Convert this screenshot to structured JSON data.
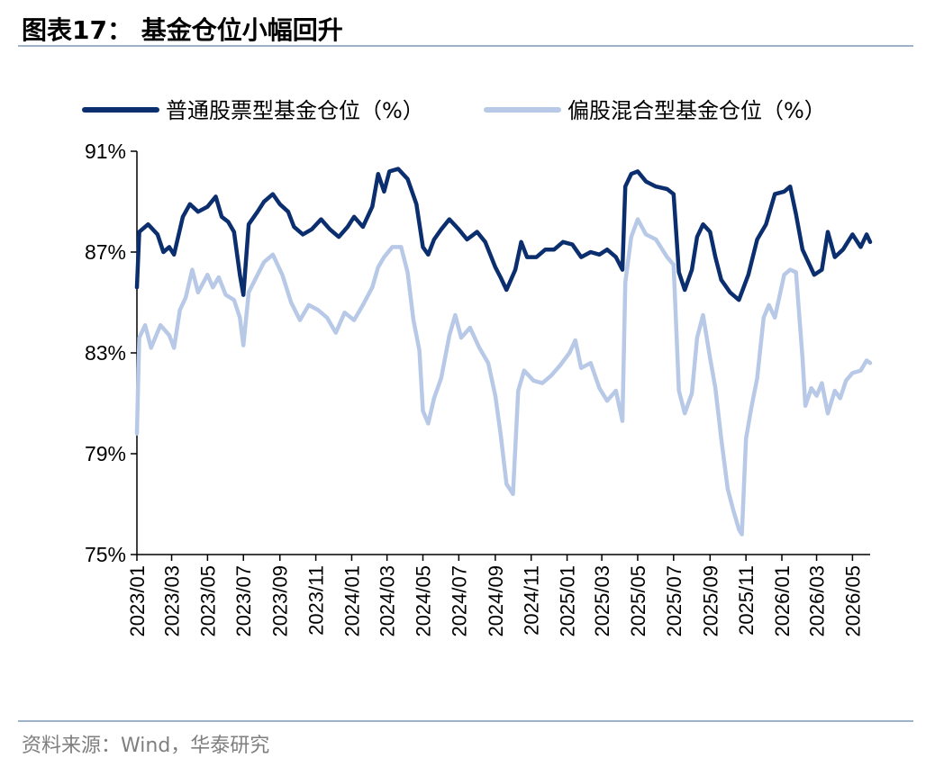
{
  "figure": {
    "title": "图表17：  基金仓位小幅回升",
    "source": "资料来源：Wind，华泰研究"
  },
  "colors": {
    "series_dark": "#0b2e6e",
    "series_light": "#b7c9e6",
    "rule": "#9fb2c8",
    "axis": "#000000"
  },
  "chart_data": {
    "type": "line",
    "title": "",
    "xlabel": "",
    "ylabel": "",
    "ylim": [
      75,
      91
    ],
    "yticks": [
      "75%",
      "79%",
      "83%",
      "87%",
      "91%"
    ],
    "ytick_values": [
      75,
      79,
      83,
      87,
      91
    ],
    "xlim": [
      "2023-01-01",
      "2026-05-31"
    ],
    "xticks": [
      "2023/01",
      "2023/03",
      "2023/05",
      "2023/07",
      "2023/09",
      "2023/11",
      "2024/01",
      "2024/03",
      "2024/05",
      "2024/07",
      "2024/09",
      "2024/11",
      "2025/01",
      "2025/03",
      "2025/05",
      "2025/07",
      "2025/09",
      "2025/11",
      "2026/01",
      "2026/03",
      "2026/05"
    ],
    "grid": false,
    "legend_position": "top",
    "series": [
      {
        "name": "普通股票型基金仓位（%）",
        "color": "#0b2e6e",
        "points": [
          [
            "2023-01-01",
            85.6
          ],
          [
            "2023-01-05",
            87.8
          ],
          [
            "2023-01-20",
            88.1
          ],
          [
            "2023-02-05",
            87.7
          ],
          [
            "2023-02-15",
            87.0
          ],
          [
            "2023-02-25",
            87.2
          ],
          [
            "2023-03-05",
            86.9
          ],
          [
            "2023-03-20",
            88.4
          ],
          [
            "2023-04-01",
            88.9
          ],
          [
            "2023-04-15",
            88.6
          ],
          [
            "2023-05-01",
            88.8
          ],
          [
            "2023-05-15",
            89.2
          ],
          [
            "2023-05-25",
            88.4
          ],
          [
            "2023-06-05",
            88.2
          ],
          [
            "2023-06-15",
            87.8
          ],
          [
            "2023-06-25",
            86.1
          ],
          [
            "2023-07-01",
            85.3
          ],
          [
            "2023-07-10",
            88.1
          ],
          [
            "2023-07-25",
            88.6
          ],
          [
            "2023-08-05",
            89.0
          ],
          [
            "2023-08-20",
            89.3
          ],
          [
            "2023-09-01",
            88.9
          ],
          [
            "2023-09-15",
            88.6
          ],
          [
            "2023-09-25",
            88.0
          ],
          [
            "2023-10-10",
            87.7
          ],
          [
            "2023-10-25",
            87.9
          ],
          [
            "2023-11-10",
            88.3
          ],
          [
            "2023-11-25",
            87.9
          ],
          [
            "2023-12-10",
            87.6
          ],
          [
            "2023-12-25",
            88.0
          ],
          [
            "2024-01-05",
            88.4
          ],
          [
            "2024-01-20",
            88.0
          ],
          [
            "2024-02-05",
            88.8
          ],
          [
            "2024-02-15",
            90.1
          ],
          [
            "2024-02-25",
            89.4
          ],
          [
            "2024-03-05",
            90.2
          ],
          [
            "2024-03-20",
            90.3
          ],
          [
            "2024-04-05",
            89.9
          ],
          [
            "2024-04-20",
            88.9
          ],
          [
            "2024-05-01",
            87.2
          ],
          [
            "2024-05-10",
            86.9
          ],
          [
            "2024-05-20",
            87.5
          ],
          [
            "2024-06-01",
            87.9
          ],
          [
            "2024-06-15",
            88.3
          ],
          [
            "2024-07-01",
            87.9
          ],
          [
            "2024-07-15",
            87.5
          ],
          [
            "2024-08-01",
            87.8
          ],
          [
            "2024-08-15",
            87.4
          ],
          [
            "2024-09-01",
            86.4
          ],
          [
            "2024-09-10",
            86.0
          ],
          [
            "2024-09-20",
            85.5
          ],
          [
            "2024-10-05",
            86.3
          ],
          [
            "2024-10-15",
            87.4
          ],
          [
            "2024-10-25",
            86.8
          ],
          [
            "2024-11-10",
            86.8
          ],
          [
            "2024-11-25",
            87.1
          ],
          [
            "2024-12-10",
            87.1
          ],
          [
            "2024-12-25",
            87.4
          ],
          [
            "2025-01-10",
            87.3
          ],
          [
            "2025-01-25",
            86.8
          ],
          [
            "2025-02-10",
            87.0
          ],
          [
            "2025-02-25",
            86.9
          ],
          [
            "2025-03-10",
            87.1
          ],
          [
            "2025-03-25",
            86.8
          ],
          [
            "2025-04-05",
            86.3
          ],
          [
            "2025-04-10",
            89.6
          ],
          [
            "2025-04-20",
            90.1
          ],
          [
            "2025-05-01",
            90.2
          ],
          [
            "2025-05-15",
            89.8
          ],
          [
            "2025-06-01",
            89.6
          ],
          [
            "2025-06-20",
            89.5
          ],
          [
            "2025-07-01",
            89.3
          ],
          [
            "2025-07-10",
            86.2
          ],
          [
            "2025-07-20",
            85.5
          ],
          [
            "2025-08-01",
            86.3
          ],
          [
            "2025-08-10",
            87.6
          ],
          [
            "2025-08-20",
            88.1
          ],
          [
            "2025-09-01",
            87.8
          ],
          [
            "2025-09-10",
            86.8
          ],
          [
            "2025-09-20",
            85.9
          ],
          [
            "2025-10-05",
            85.4
          ],
          [
            "2025-10-20",
            85.1
          ],
          [
            "2025-11-05",
            86.1
          ],
          [
            "2025-11-20",
            87.5
          ],
          [
            "2025-12-05",
            88.1
          ],
          [
            "2025-12-20",
            89.3
          ],
          [
            "2026-01-05",
            89.4
          ],
          [
            "2026-01-15",
            89.6
          ],
          [
            "2026-01-25",
            88.5
          ],
          [
            "2026-02-05",
            87.1
          ],
          [
            "2026-02-15",
            86.6
          ],
          [
            "2026-02-25",
            86.1
          ],
          [
            "2026-03-10",
            86.3
          ],
          [
            "2026-03-20",
            87.8
          ],
          [
            "2026-04-01",
            86.8
          ],
          [
            "2026-04-15",
            87.1
          ],
          [
            "2026-05-01",
            87.7
          ],
          [
            "2026-05-15",
            87.2
          ],
          [
            "2026-05-25",
            87.7
          ],
          [
            "2026-05-31",
            87.4
          ]
        ]
      },
      {
        "name": "偏股混合型基金仓位（%）",
        "color": "#b7c9e6",
        "points": [
          [
            "2023-01-01",
            79.8
          ],
          [
            "2023-01-05",
            83.6
          ],
          [
            "2023-01-15",
            84.1
          ],
          [
            "2023-01-25",
            83.2
          ],
          [
            "2023-02-10",
            84.1
          ],
          [
            "2023-02-25",
            83.7
          ],
          [
            "2023-03-05",
            83.2
          ],
          [
            "2023-03-15",
            84.7
          ],
          [
            "2023-03-25",
            85.2
          ],
          [
            "2023-04-05",
            86.3
          ],
          [
            "2023-04-15",
            85.4
          ],
          [
            "2023-05-01",
            86.1
          ],
          [
            "2023-05-10",
            85.6
          ],
          [
            "2023-05-20",
            86.0
          ],
          [
            "2023-06-01",
            85.3
          ],
          [
            "2023-06-15",
            85.1
          ],
          [
            "2023-06-25",
            84.4
          ],
          [
            "2023-07-01",
            83.3
          ],
          [
            "2023-07-10",
            85.4
          ],
          [
            "2023-07-25",
            86.1
          ],
          [
            "2023-08-05",
            86.6
          ],
          [
            "2023-08-20",
            86.9
          ],
          [
            "2023-09-05",
            86.1
          ],
          [
            "2023-09-20",
            85.0
          ],
          [
            "2023-10-05",
            84.3
          ],
          [
            "2023-10-20",
            84.9
          ],
          [
            "2023-11-05",
            84.7
          ],
          [
            "2023-11-20",
            84.4
          ],
          [
            "2023-12-05",
            83.8
          ],
          [
            "2023-12-20",
            84.6
          ],
          [
            "2024-01-05",
            84.3
          ],
          [
            "2024-01-20",
            84.9
          ],
          [
            "2024-02-05",
            85.6
          ],
          [
            "2024-02-15",
            86.4
          ],
          [
            "2024-02-25",
            86.8
          ],
          [
            "2024-03-10",
            87.2
          ],
          [
            "2024-03-25",
            87.2
          ],
          [
            "2024-04-05",
            86.2
          ],
          [
            "2024-04-15",
            84.3
          ],
          [
            "2024-04-25",
            83.1
          ],
          [
            "2024-05-01",
            80.7
          ],
          [
            "2024-05-10",
            80.2
          ],
          [
            "2024-05-20",
            81.2
          ],
          [
            "2024-06-01",
            82.0
          ],
          [
            "2024-06-15",
            83.7
          ],
          [
            "2024-06-25",
            84.5
          ],
          [
            "2024-07-05",
            83.6
          ],
          [
            "2024-07-20",
            84.0
          ],
          [
            "2024-08-05",
            83.2
          ],
          [
            "2024-08-20",
            82.6
          ],
          [
            "2024-09-01",
            81.3
          ],
          [
            "2024-09-10",
            79.8
          ],
          [
            "2024-09-20",
            77.8
          ],
          [
            "2024-10-01",
            77.4
          ],
          [
            "2024-10-10",
            81.5
          ],
          [
            "2024-10-20",
            82.3
          ],
          [
            "2024-11-05",
            81.9
          ],
          [
            "2024-11-20",
            81.8
          ],
          [
            "2024-12-05",
            82.1
          ],
          [
            "2024-12-20",
            82.5
          ],
          [
            "2025-01-05",
            83.0
          ],
          [
            "2025-01-15",
            83.5
          ],
          [
            "2025-01-25",
            82.4
          ],
          [
            "2025-02-10",
            82.6
          ],
          [
            "2025-02-25",
            81.6
          ],
          [
            "2025-03-10",
            81.1
          ],
          [
            "2025-03-25",
            81.5
          ],
          [
            "2025-04-05",
            80.3
          ],
          [
            "2025-04-10",
            85.8
          ],
          [
            "2025-04-20",
            87.6
          ],
          [
            "2025-05-01",
            88.3
          ],
          [
            "2025-05-15",
            87.7
          ],
          [
            "2025-06-01",
            87.5
          ],
          [
            "2025-06-20",
            86.8
          ],
          [
            "2025-07-01",
            86.5
          ],
          [
            "2025-07-10",
            81.5
          ],
          [
            "2025-07-20",
            80.6
          ],
          [
            "2025-08-01",
            81.4
          ],
          [
            "2025-08-10",
            83.6
          ],
          [
            "2025-08-20",
            84.5
          ],
          [
            "2025-09-01",
            82.8
          ],
          [
            "2025-09-10",
            81.6
          ],
          [
            "2025-09-20",
            79.6
          ],
          [
            "2025-10-01",
            77.6
          ],
          [
            "2025-10-10",
            76.8
          ],
          [
            "2025-10-20",
            76.0
          ],
          [
            "2025-10-25",
            75.8
          ],
          [
            "2025-11-01",
            79.6
          ],
          [
            "2025-11-10",
            80.8
          ],
          [
            "2025-11-20",
            82.0
          ],
          [
            "2025-12-01",
            84.4
          ],
          [
            "2025-12-10",
            84.9
          ],
          [
            "2025-12-20",
            84.4
          ],
          [
            "2026-01-05",
            86.1
          ],
          [
            "2026-01-15",
            86.3
          ],
          [
            "2026-01-25",
            86.2
          ],
          [
            "2026-02-05",
            82.8
          ],
          [
            "2026-02-10",
            80.9
          ],
          [
            "2026-02-20",
            81.6
          ],
          [
            "2026-03-01",
            81.3
          ],
          [
            "2026-03-10",
            81.8
          ],
          [
            "2026-03-20",
            80.6
          ],
          [
            "2026-04-01",
            81.5
          ],
          [
            "2026-04-10",
            81.2
          ],
          [
            "2026-04-20",
            81.9
          ],
          [
            "2026-05-01",
            82.2
          ],
          [
            "2026-05-15",
            82.3
          ],
          [
            "2026-05-25",
            82.7
          ],
          [
            "2026-05-31",
            82.6
          ]
        ]
      }
    ]
  }
}
